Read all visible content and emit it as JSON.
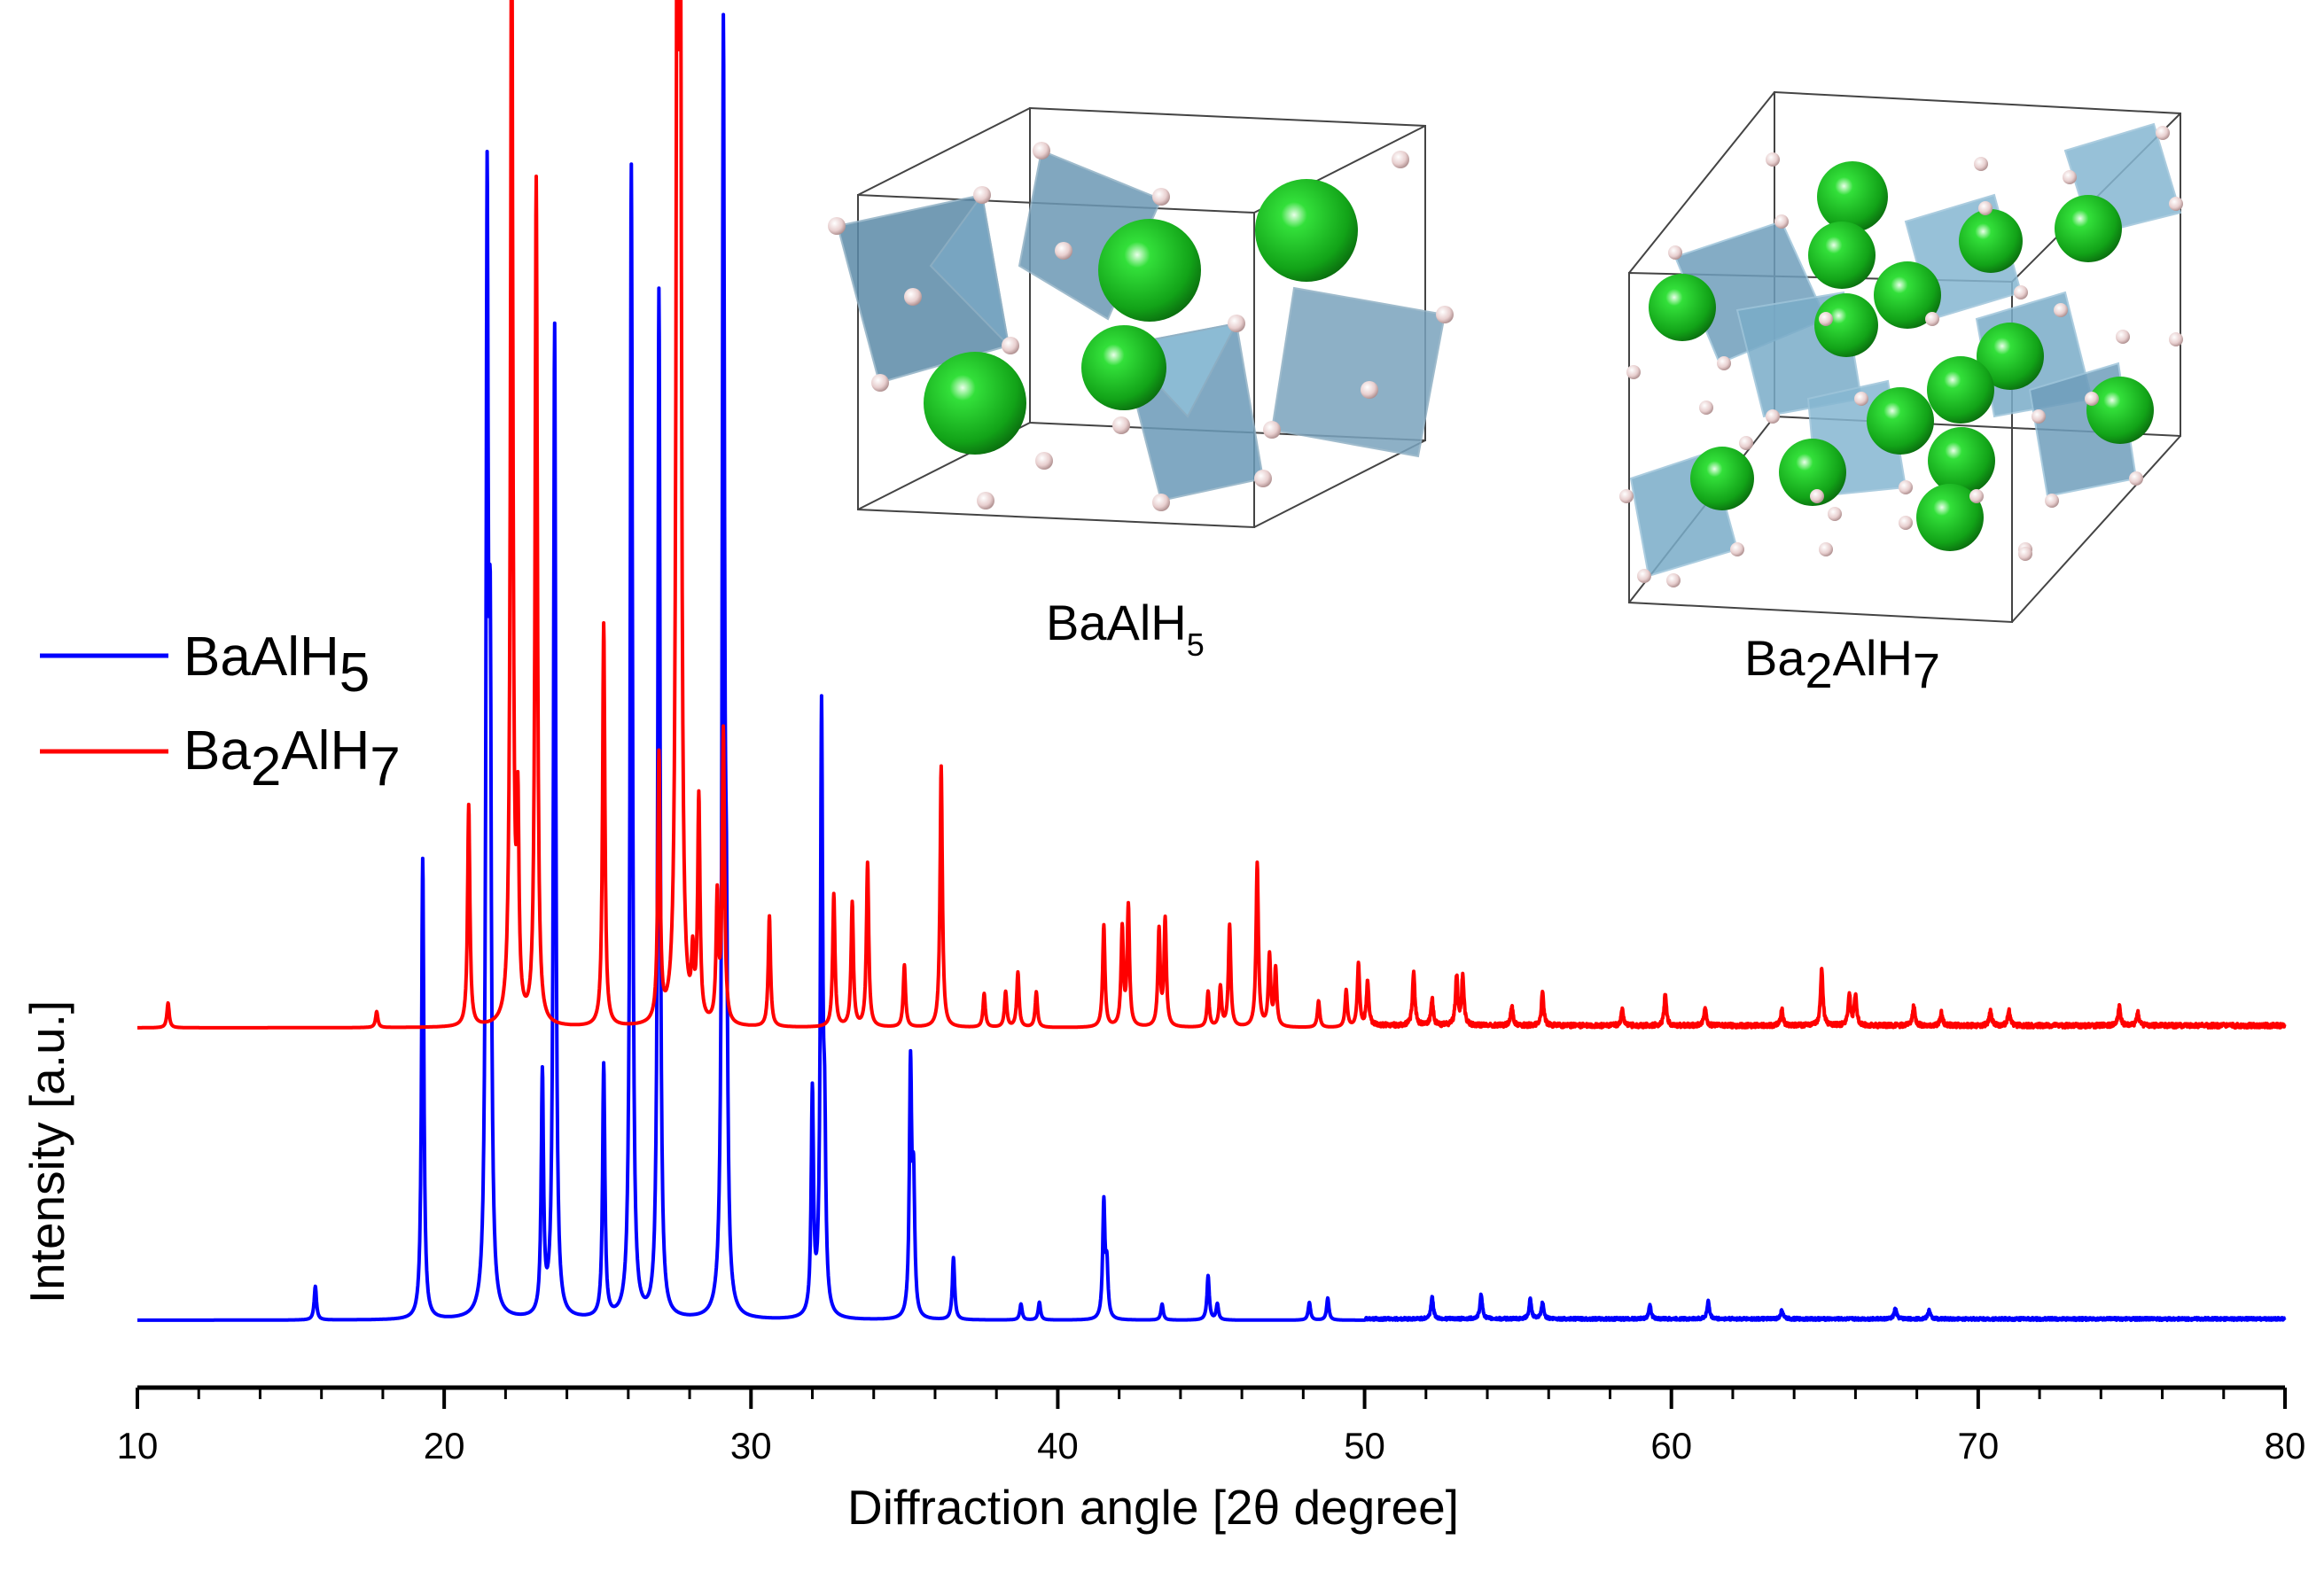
{
  "chart_data": {
    "type": "line",
    "xlabel": "Diffraction angle [2θ degree]",
    "ylabel": "Intensity [a.u.]",
    "xlim": [
      10,
      80
    ],
    "xticks": [
      10,
      20,
      30,
      40,
      50,
      60,
      70,
      80
    ],
    "xtick_labels": [
      "10",
      "20",
      "30",
      "40",
      "50",
      "60",
      "70",
      "80"
    ],
    "y_ticks_shown": false,
    "colors": {
      "BaAlH5": "#0000ff",
      "Ba2AlH7": "#ff0000",
      "axis": "#000000"
    },
    "legend": {
      "placement": "left",
      "entries": [
        {
          "name": "BaAlH5",
          "base": "BaAlH",
          "sub": "5",
          "color": "#0000ff"
        },
        {
          "name": "Ba2AlH7",
          "base": "Ba",
          "sub1": "2",
          "mid": "AlH",
          "sub2": "7",
          "color": "#ff0000"
        }
      ]
    },
    "series": [
      {
        "name": "BaAlH5",
        "color": "#0000ff",
        "offset": 0,
        "peaks": [
          [
            15.8,
            38
          ],
          [
            19.3,
            520
          ],
          [
            21.4,
            1210
          ],
          [
            21.5,
            640
          ],
          [
            23.2,
            270
          ],
          [
            23.6,
            1120
          ],
          [
            25.2,
            285
          ],
          [
            26.1,
            1300
          ],
          [
            27.0,
            1160
          ],
          [
            29.1,
            1420
          ],
          [
            29.2,
            310
          ],
          [
            32.0,
            250
          ],
          [
            32.3,
            670
          ],
          [
            32.4,
            170
          ],
          [
            35.2,
            280
          ],
          [
            35.3,
            140
          ],
          [
            36.6,
            70
          ],
          [
            38.8,
            18
          ],
          [
            39.4,
            20
          ],
          [
            41.5,
            130
          ],
          [
            41.6,
            55
          ],
          [
            43.4,
            18
          ],
          [
            44.9,
            50
          ],
          [
            45.2,
            18
          ],
          [
            48.2,
            20
          ],
          [
            48.8,
            25
          ],
          [
            52.2,
            25
          ],
          [
            53.8,
            28
          ],
          [
            55.4,
            22
          ],
          [
            55.8,
            18
          ],
          [
            59.3,
            15
          ],
          [
            61.2,
            20
          ],
          [
            63.6,
            10
          ],
          [
            67.3,
            12
          ],
          [
            68.4,
            10
          ]
        ]
      },
      {
        "name": "Ba2AlH7",
        "color": "#ff0000",
        "offset": 330,
        "peaks": [
          [
            11.0,
            28
          ],
          [
            17.8,
            18
          ],
          [
            20.8,
            250
          ],
          [
            22.2,
            1310
          ],
          [
            22.4,
            220
          ],
          [
            23.0,
            955
          ],
          [
            25.2,
            455
          ],
          [
            27.0,
            300
          ],
          [
            27.6,
            1410
          ],
          [
            27.7,
            1060
          ],
          [
            28.1,
            65
          ],
          [
            28.3,
            250
          ],
          [
            28.9,
            140
          ],
          [
            29.1,
            330
          ],
          [
            30.6,
            125
          ],
          [
            32.7,
            150
          ],
          [
            33.3,
            140
          ],
          [
            33.8,
            185
          ],
          [
            35.0,
            70
          ],
          [
            36.2,
            295
          ],
          [
            37.6,
            38
          ],
          [
            38.3,
            40
          ],
          [
            38.7,
            62
          ],
          [
            39.3,
            40
          ],
          [
            41.5,
            115
          ],
          [
            42.1,
            110
          ],
          [
            42.3,
            135
          ],
          [
            43.3,
            108
          ],
          [
            43.5,
            120
          ],
          [
            44.9,
            40
          ],
          [
            45.3,
            45
          ],
          [
            45.6,
            115
          ],
          [
            46.5,
            185
          ],
          [
            46.9,
            80
          ],
          [
            47.1,
            65
          ],
          [
            48.5,
            30
          ],
          [
            49.4,
            42
          ],
          [
            49.8,
            72
          ],
          [
            50.1,
            50
          ],
          [
            51.6,
            62
          ],
          [
            52.2,
            30
          ],
          [
            53.0,
            55
          ],
          [
            53.2,
            55
          ],
          [
            54.8,
            22
          ],
          [
            55.8,
            38
          ],
          [
            58.4,
            18
          ],
          [
            59.8,
            35
          ],
          [
            61.1,
            20
          ],
          [
            63.6,
            18
          ],
          [
            64.9,
            65
          ],
          [
            65.8,
            35
          ],
          [
            66.0,
            35
          ],
          [
            67.9,
            22
          ],
          [
            68.8,
            15
          ],
          [
            70.4,
            18
          ],
          [
            71.0,
            18
          ],
          [
            74.6,
            22
          ],
          [
            75.2,
            15
          ]
        ]
      }
    ],
    "insets": [
      {
        "name": "BaAlH5",
        "label_base": "BaAlH",
        "label_sub": "5"
      },
      {
        "name": "Ba2AlH7",
        "label_base": "Ba",
        "label_sub1": "2",
        "label_mid": "AlH",
        "label_sub2": "7"
      }
    ]
  }
}
